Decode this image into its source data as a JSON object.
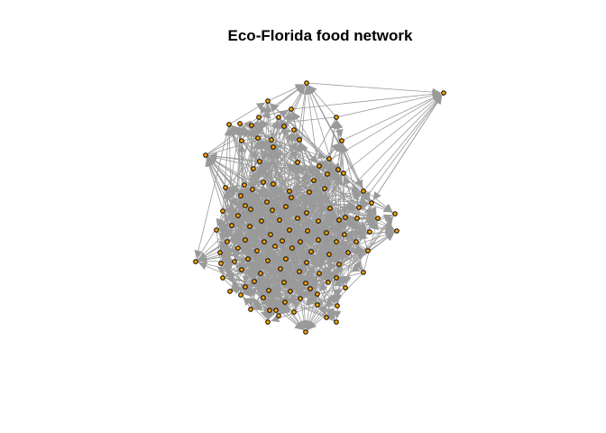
{
  "title": "Eco-Florida food network",
  "colors": {
    "background": "#ffffff",
    "edge": "#9a9a9a",
    "node_fill": "#ffa500",
    "node_stroke": "#000000",
    "title": "#000000"
  },
  "network": {
    "type": "directed food web",
    "node_count": 128,
    "layout": "force-directed hairball with a few outlying nodes",
    "edge_style": "gray arrows"
  }
}
